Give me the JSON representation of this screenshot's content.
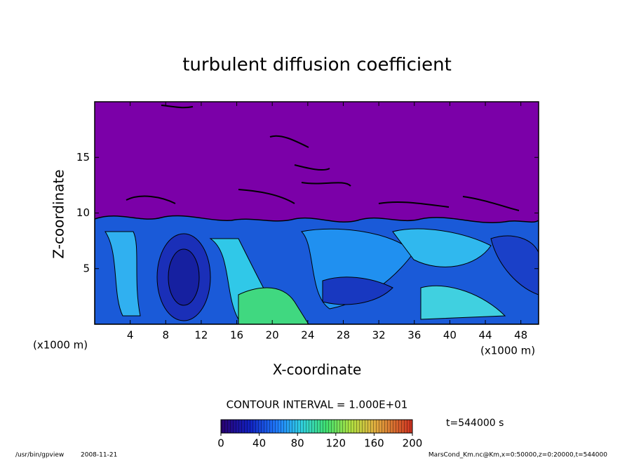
{
  "chart_data": {
    "type": "contour",
    "title": "turbulent diffusion coefficient",
    "x_label": "X-coordinate",
    "y_label": "Z-coordinate",
    "x_unit": "(x1000 m)",
    "y_unit": "(x1000 m)",
    "xlim": [
      0,
      50
    ],
    "xticks": [
      4,
      8,
      12,
      16,
      20,
      24,
      28,
      32,
      36,
      40,
      44,
      48
    ],
    "ylim": [
      0,
      20
    ],
    "yticks": [
      5,
      10,
      15
    ],
    "contour_interval_label": "CONTOUR INTERVAL = 1.000E+01",
    "colorbar_lim": [
      0,
      200
    ],
    "colorbar_ticks": [
      0,
      40,
      80,
      120,
      160,
      200
    ],
    "time_label": "t=544000 s",
    "footer_left": [
      "/usr/bin/gpview",
      "2008-11-21"
    ],
    "footer_right": "MarsCond_Km.nc@Km,x=0:50000,z=0:20000,t=544000"
  }
}
